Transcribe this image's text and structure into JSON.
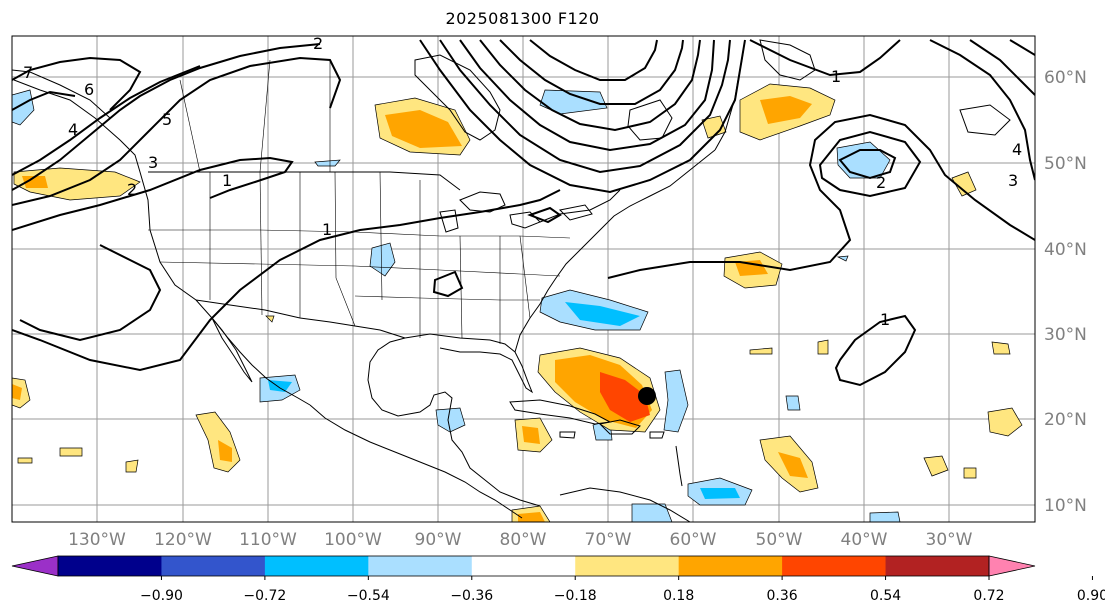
{
  "title": "2025081300 F120",
  "longitude_labels": [
    "130°W",
    "120°W",
    "110°W",
    "100°W",
    "90°W",
    "80°W",
    "70°W",
    "60°W",
    "50°W",
    "40°W",
    "30°W"
  ],
  "latitude_labels": [
    "60°N",
    "50°N",
    "40°N",
    "30°N",
    "20°N",
    "10°N"
  ],
  "contour_labels": [
    "1",
    "2",
    "3",
    "4",
    "5",
    "6",
    "7",
    "1",
    "2",
    "3",
    "4",
    "1",
    "1",
    "2"
  ],
  "colorbar": {
    "ticks": [
      "−0.90",
      "−0.72",
      "−0.54",
      "−0.36",
      "−0.18",
      "0.18",
      "0.36",
      "0.54",
      "0.72",
      "0.90"
    ],
    "colors": [
      "#9b30c8",
      "#00008c",
      "#3355cc",
      "#00bfff",
      "#aadfff",
      "#ffffff",
      "#ffe680",
      "#ffa500",
      "#ff4500",
      "#b22222",
      "#ff82b0"
    ]
  },
  "colors": {
    "pos_light": "#ffe680",
    "pos_mid": "#ffa500",
    "pos_strong": "#ff4500",
    "neg_light": "#aadfff",
    "neg_mid": "#00bfff",
    "storm_marker": "#000000"
  }
}
